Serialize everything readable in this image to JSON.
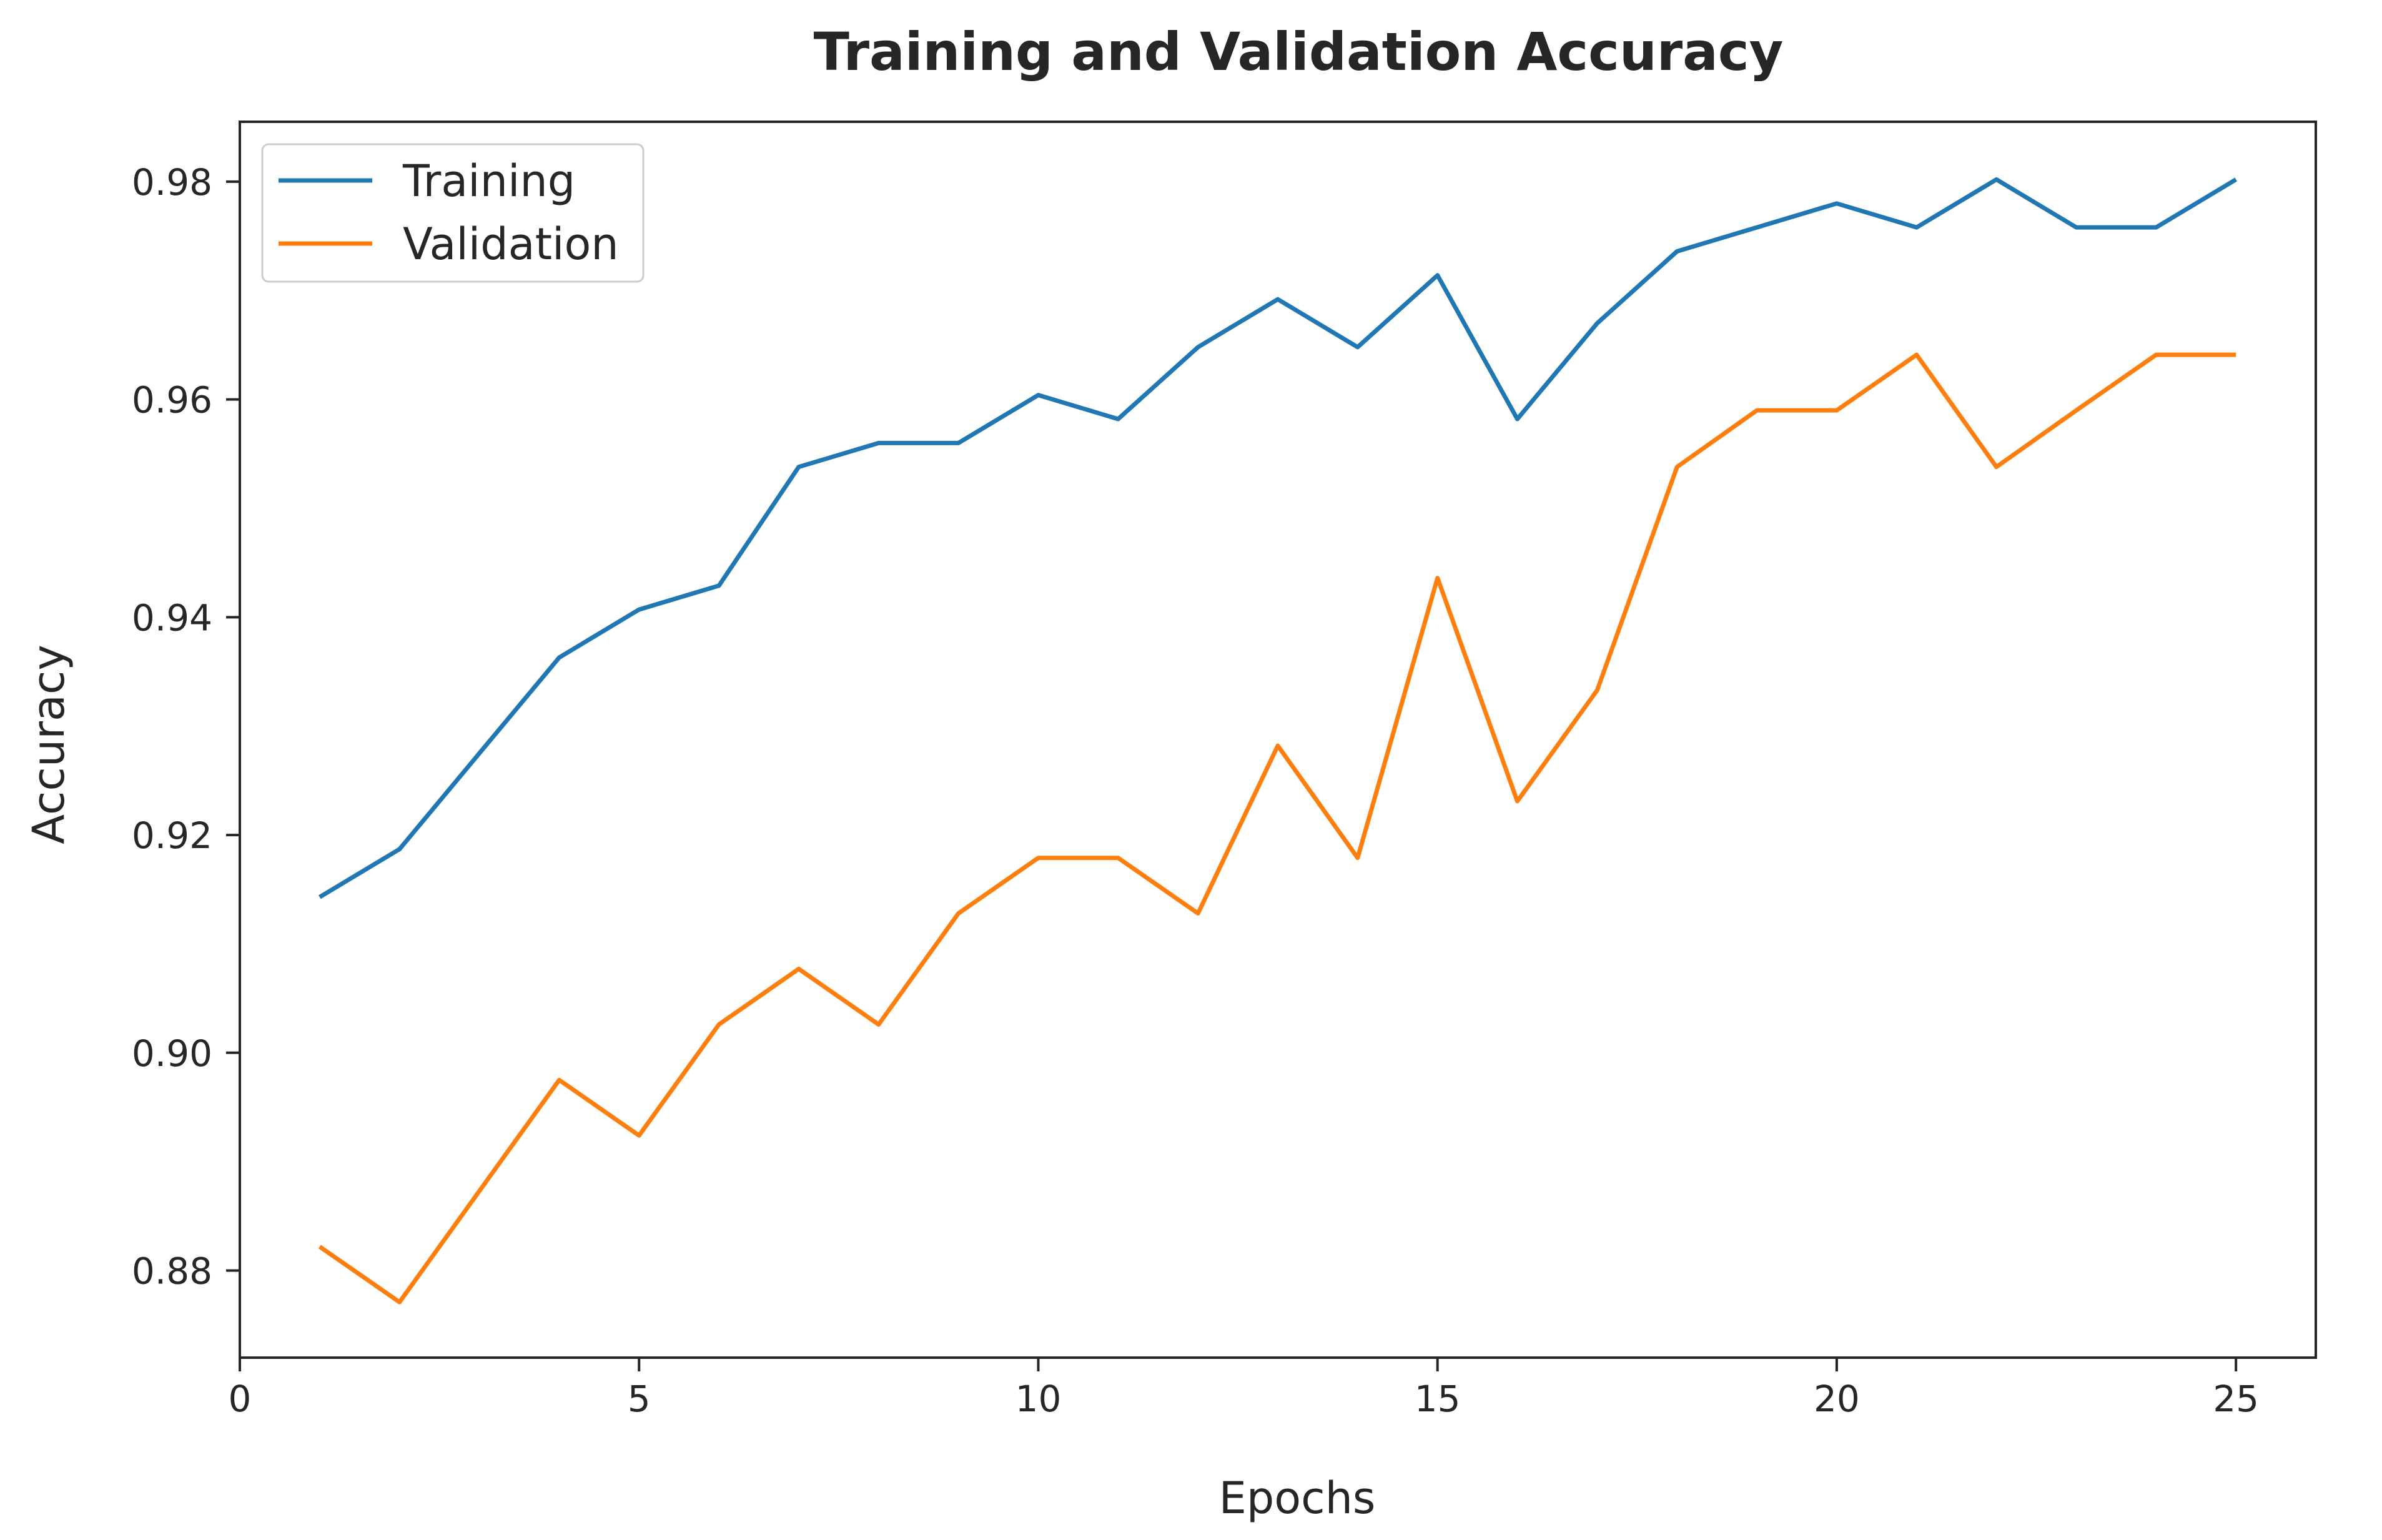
{
  "chart_data": {
    "type": "line",
    "title": "Training and Validation Accuracy",
    "xlabel": "Epochs",
    "ylabel": "Accuracy",
    "xlim": [
      0,
      26
    ],
    "ylim": [
      0.872,
      0.9855
    ],
    "xticks": [
      0,
      5,
      10,
      15,
      20,
      25
    ],
    "xtick_labels": [
      "0",
      "5",
      "10",
      "15",
      "20",
      "25"
    ],
    "yticks": [
      0.88,
      0.9,
      0.92,
      0.94,
      0.96,
      0.98
    ],
    "ytick_labels": [
      "0.88",
      "0.90",
      "0.92",
      "0.94",
      "0.96",
      "0.98"
    ],
    "grid": false,
    "legend_position": "top-left",
    "x": [
      1,
      2,
      3,
      4,
      5,
      6,
      7,
      8,
      9,
      10,
      11,
      12,
      13,
      14,
      15,
      16,
      17,
      18,
      19,
      20,
      21,
      22,
      23,
      24,
      25
    ],
    "series": [
      {
        "name": "Training",
        "color": "#1f77b4",
        "values": [
          0.9143,
          0.9187,
          0.9275,
          0.9363,
          0.9407,
          0.9429,
          0.9538,
          0.956,
          0.956,
          0.9604,
          0.9582,
          0.9648,
          0.9692,
          0.9648,
          0.9714,
          0.9582,
          0.967,
          0.9736,
          0.9758,
          0.978,
          0.9758,
          0.9802,
          0.9758,
          0.9758,
          0.9802
        ]
      },
      {
        "name": "Validation",
        "color": "#ff7f0e",
        "values": [
          0.8822,
          0.8771,
          0.8873,
          0.8975,
          0.8924,
          0.9026,
          0.9077,
          0.9026,
          0.9128,
          0.9179,
          0.9179,
          0.9128,
          0.9282,
          0.9179,
          0.9436,
          0.9231,
          0.9333,
          0.9538,
          0.959,
          0.959,
          0.9641,
          0.9538,
          0.959,
          0.9641,
          0.9641
        ]
      }
    ]
  }
}
